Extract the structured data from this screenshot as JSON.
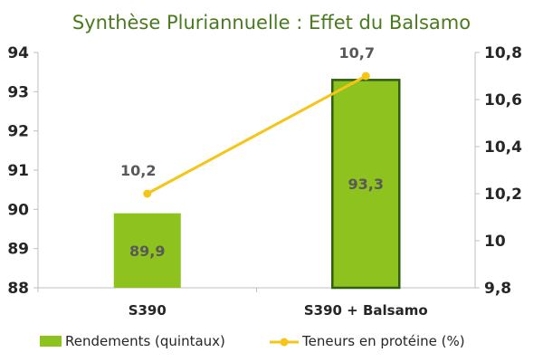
{
  "chart_data": {
    "type": "bar",
    "title": "Synthèse Pluriannuelle : Effet du Balsamo",
    "categories": [
      "S390",
      "S390 + Balsamo"
    ],
    "series": [
      {
        "name": "Rendements (quintaux)",
        "kind": "bar",
        "axis": "left",
        "values": [
          89.9,
          93.3
        ],
        "value_labels": [
          "89,9",
          "93,3"
        ],
        "color": "#8dc21f"
      },
      {
        "name": "Teneurs en protéine (%)",
        "kind": "line",
        "axis": "right",
        "values": [
          10.2,
          10.7
        ],
        "value_labels": [
          "10,2",
          "10,7"
        ],
        "color": "#f5c518"
      }
    ],
    "y_left": {
      "min": 88,
      "max": 94,
      "ticks": [
        "88",
        "89",
        "90",
        "91",
        "92",
        "93",
        "94"
      ]
    },
    "y_right": {
      "min": 9.8,
      "max": 10.8,
      "ticks": [
        "9,8",
        "10",
        "10,2",
        "10,4",
        "10,6",
        "10,8"
      ]
    },
    "grid": false,
    "legend_position": "bottom",
    "colors": {
      "bar_highlight_border": "#2e5e0e",
      "axis": "#bfbfbf",
      "title": "#4a7a1e"
    }
  }
}
